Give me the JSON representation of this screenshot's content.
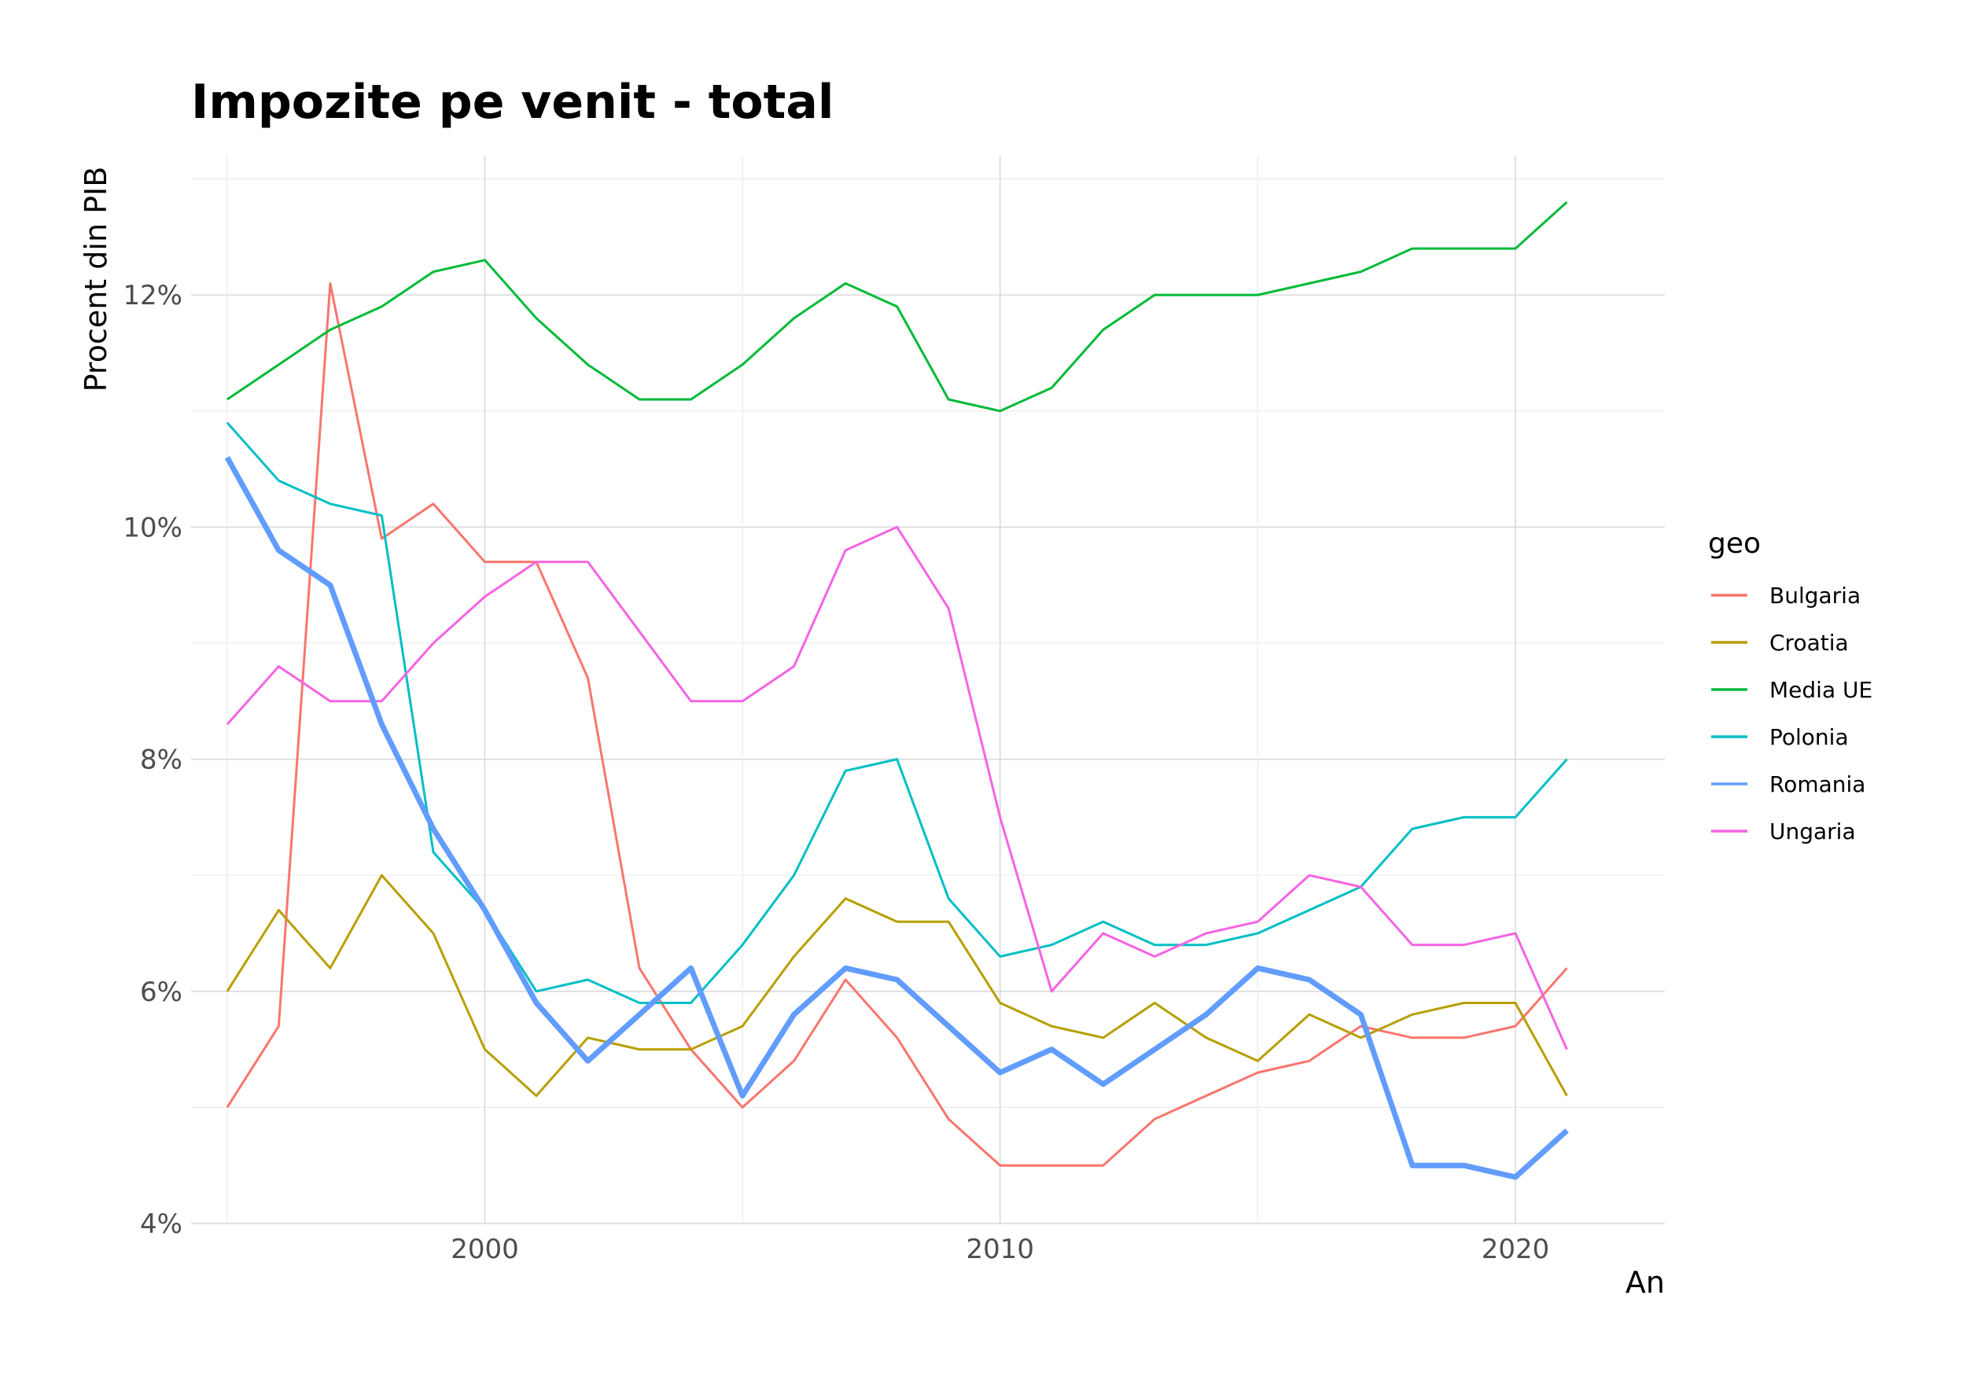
{
  "chart_data": {
    "type": "line",
    "title": "Impozite pe venit - total",
    "xlabel": "An",
    "ylabel": "Procent din PIB",
    "xlim": [
      1994.3,
      2022.9
    ],
    "ylim": [
      4.0,
      13.2
    ],
    "x_ticks": [
      2000,
      2010,
      2020
    ],
    "x_tick_labels": [
      "2000",
      "2010",
      "2020"
    ],
    "y_ticks": [
      4,
      6,
      8,
      10,
      12
    ],
    "y_tick_labels": [
      "4%",
      "6%",
      "8%",
      "10%",
      "12%"
    ],
    "grid": true,
    "legend": {
      "title": "geo",
      "position": "right"
    },
    "x": [
      1995,
      1996,
      1997,
      1998,
      1999,
      2000,
      2001,
      2002,
      2003,
      2004,
      2005,
      2006,
      2007,
      2008,
      2009,
      2010,
      2011,
      2012,
      2013,
      2014,
      2015,
      2016,
      2017,
      2018,
      2019,
      2020,
      2021
    ],
    "series": [
      {
        "name": "Bulgaria",
        "color": "#F8766D",
        "emphasis": false,
        "values": [
          5.0,
          5.7,
          12.1,
          9.9,
          10.2,
          9.7,
          9.7,
          8.7,
          6.2,
          5.5,
          5.0,
          5.4,
          6.1,
          5.6,
          4.9,
          4.5,
          4.5,
          4.5,
          4.9,
          5.1,
          5.3,
          5.4,
          5.7,
          5.6,
          5.6,
          5.7,
          6.2
        ]
      },
      {
        "name": "Croatia",
        "color": "#B79F00",
        "emphasis": false,
        "values": [
          6.0,
          6.7,
          6.2,
          7.0,
          6.5,
          5.5,
          5.1,
          5.6,
          5.5,
          5.5,
          5.7,
          6.3,
          6.8,
          6.6,
          6.6,
          5.9,
          5.7,
          5.6,
          5.9,
          5.6,
          5.4,
          5.8,
          5.6,
          5.8,
          5.9,
          5.9,
          5.1
        ]
      },
      {
        "name": "Media UE",
        "color": "#00BA38",
        "emphasis": false,
        "values": [
          11.1,
          11.4,
          11.7,
          11.9,
          12.2,
          12.3,
          11.8,
          11.4,
          11.1,
          11.1,
          11.4,
          11.8,
          12.1,
          11.9,
          11.1,
          11.0,
          11.2,
          11.7,
          12.0,
          12.0,
          12.0,
          12.1,
          12.2,
          12.4,
          12.4,
          12.4,
          12.8
        ]
      },
      {
        "name": "Polonia",
        "color": "#00BFC4",
        "emphasis": false,
        "values": [
          10.9,
          10.4,
          10.2,
          10.1,
          7.2,
          6.7,
          6.0,
          6.1,
          5.9,
          5.9,
          6.4,
          7.0,
          7.9,
          8.0,
          6.8,
          6.3,
          6.4,
          6.6,
          6.4,
          6.4,
          6.5,
          6.7,
          6.9,
          7.4,
          7.5,
          7.5,
          8.0
        ]
      },
      {
        "name": "Romania",
        "color": "#619CFF",
        "emphasis": true,
        "values": [
          10.6,
          9.8,
          9.5,
          8.3,
          7.4,
          6.7,
          5.9,
          5.4,
          5.8,
          6.2,
          5.1,
          5.8,
          6.2,
          6.1,
          5.7,
          5.3,
          5.5,
          5.2,
          5.5,
          5.8,
          6.2,
          6.1,
          5.8,
          4.5,
          4.5,
          4.4,
          4.8
        ]
      },
      {
        "name": "Ungaria",
        "color": "#F564E3",
        "emphasis": false,
        "values": [
          8.3,
          8.8,
          8.5,
          8.5,
          9.0,
          9.4,
          9.7,
          9.7,
          9.1,
          8.5,
          8.5,
          8.8,
          9.8,
          10.0,
          9.3,
          7.5,
          6.0,
          6.5,
          6.3,
          6.5,
          6.6,
          7.0,
          6.9,
          6.4,
          6.4,
          6.5,
          5.5
        ]
      }
    ]
  }
}
